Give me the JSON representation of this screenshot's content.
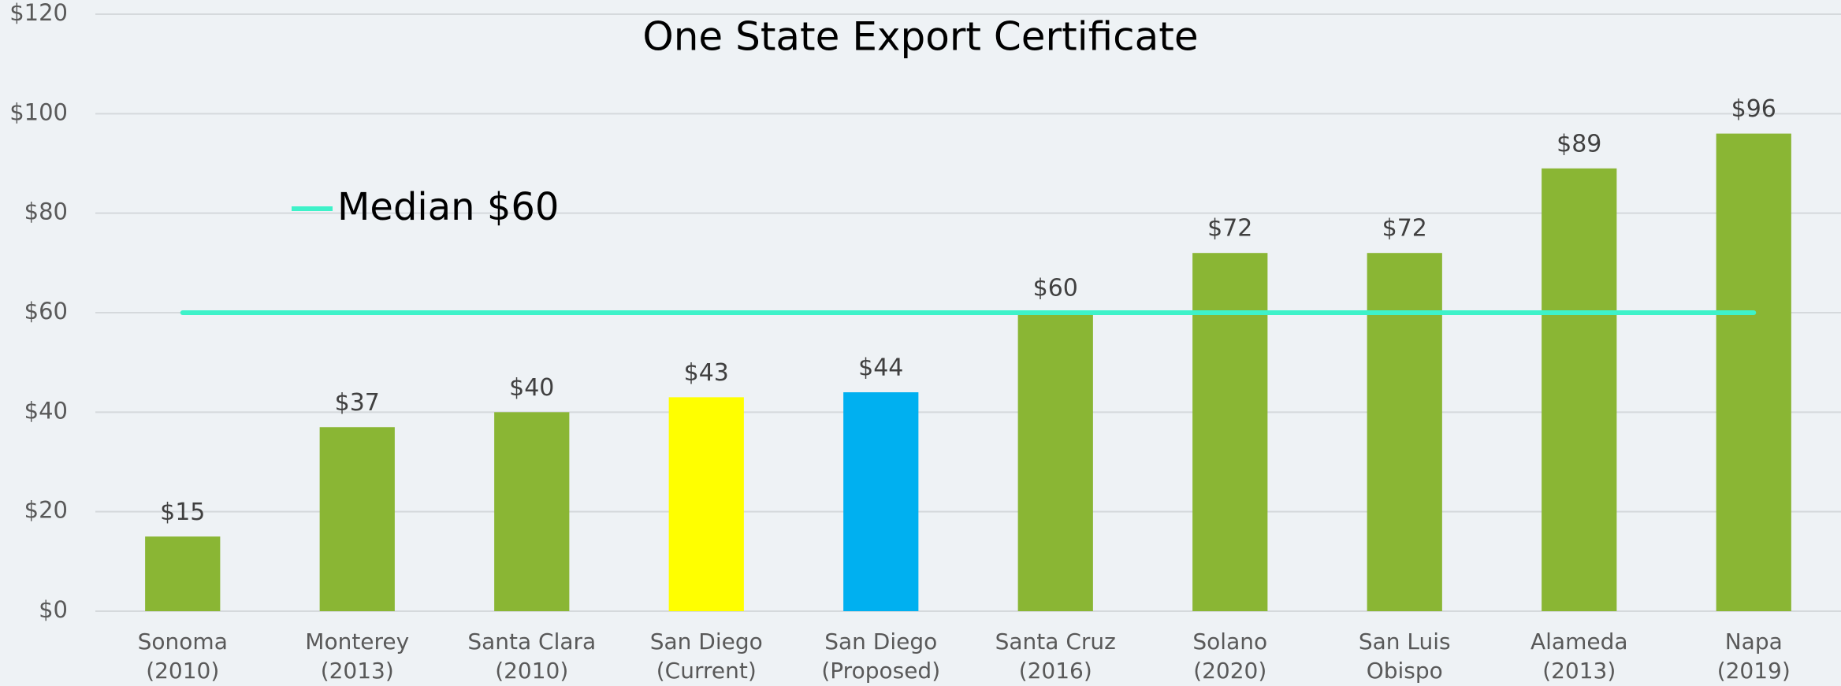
{
  "chart_data": {
    "type": "bar",
    "title": "One State Export Certificate",
    "categories": [
      "Sonoma\n(2010)",
      "Monterey\n(2013)",
      "Santa Clara\n(2010)",
      "San Diego\n(Current)",
      "San Diego\n(Proposed)",
      "Santa Cruz\n(2016)",
      "Solano\n(2020)",
      "San Luis Obispo\n(2019)",
      "Alameda\n(2013)",
      "Napa\n(2019)"
    ],
    "values": [
      15,
      37,
      40,
      43,
      44,
      60,
      72,
      72,
      89,
      96
    ],
    "value_labels": [
      "$15",
      "$37",
      "$40",
      "$43",
      "$44",
      "$60",
      "$72",
      "$72",
      "$89",
      "$96"
    ],
    "colors": [
      "#8ab634",
      "#8ab634",
      "#8ab634",
      "#ffff00",
      "#00b0f0",
      "#8ab634",
      "#8ab634",
      "#8ab634",
      "#8ab634",
      "#8ab634"
    ],
    "series": [
      {
        "name": "Median $60",
        "color": "#3ef2c9",
        "type": "line",
        "values": [
          60,
          60,
          60,
          60,
          60,
          60,
          60,
          60,
          60,
          60
        ]
      }
    ],
    "ylim": [
      0,
      120
    ],
    "yticks": [
      {
        "value": 0,
        "label": "$0"
      },
      {
        "value": 20,
        "label": "$20"
      },
      {
        "value": 40,
        "label": "$40"
      },
      {
        "value": 60,
        "label": "$60"
      },
      {
        "value": 80,
        "label": "$80"
      },
      {
        "value": 100,
        "label": "$100"
      },
      {
        "value": 120,
        "label": "$120"
      }
    ],
    "grid": true,
    "legend": "upper-left"
  }
}
